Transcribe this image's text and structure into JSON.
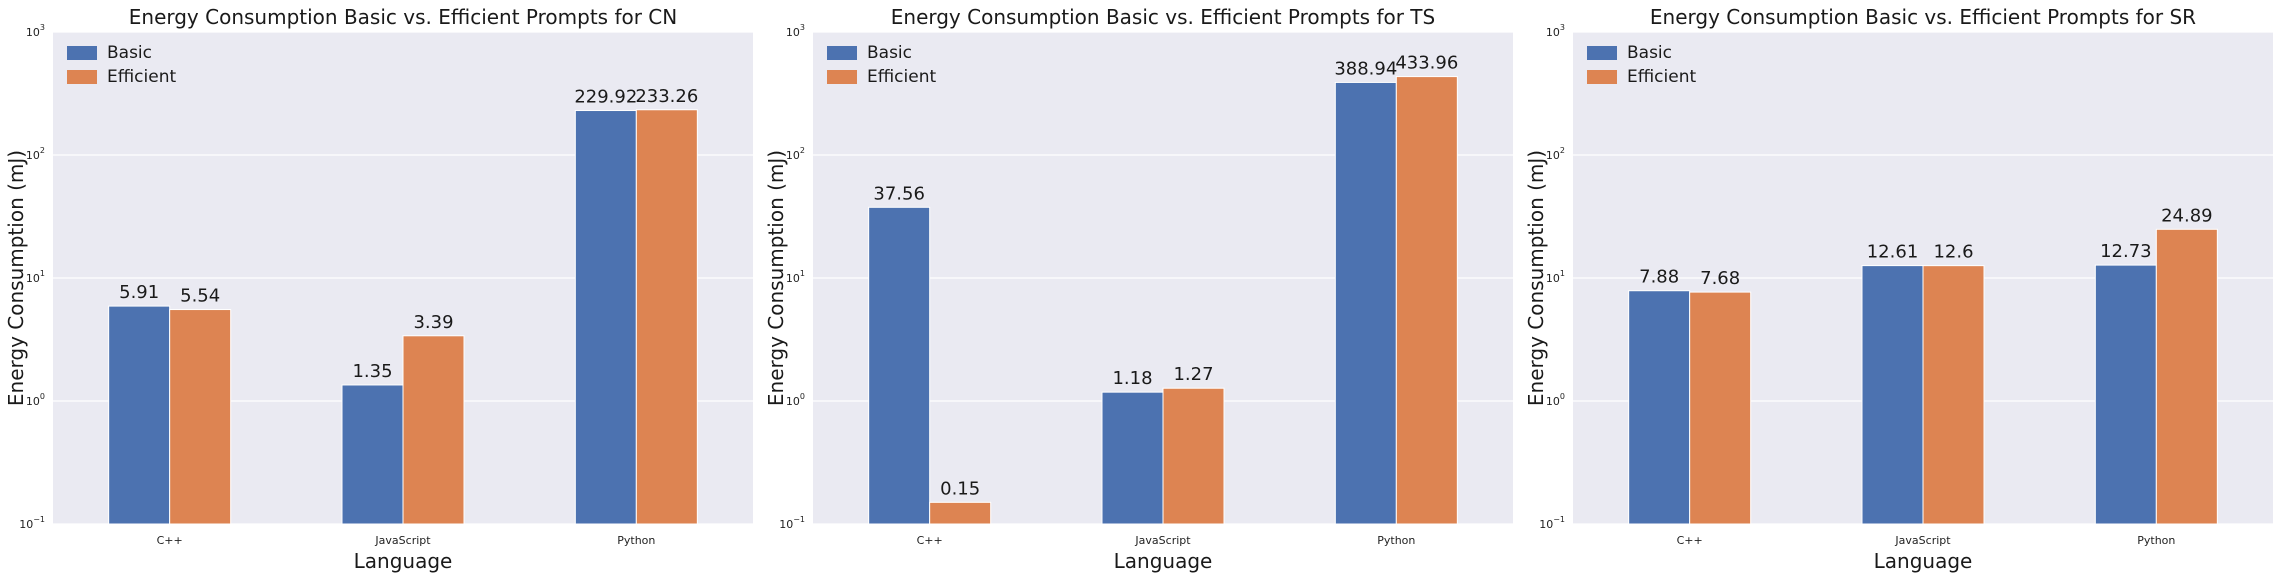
{
  "colors": {
    "basic": "#4c72b0",
    "efficient": "#dd8452",
    "panel_bg": "#eaeaf2",
    "gridline": "#ffffff"
  },
  "chart_data": [
    {
      "type": "bar",
      "title": "Energy Consumption Basic vs. Efficient Prompts for CN",
      "xlabel": "Language",
      "ylabel": "Energy Consumption (mJ)",
      "y_scale": "log",
      "ylim": [
        0.1,
        1000
      ],
      "y_ticks": [
        {
          "value": 0.1,
          "mantissa": "10",
          "exponent": "−1"
        },
        {
          "value": 1,
          "mantissa": "10",
          "exponent": "0"
        },
        {
          "value": 10,
          "mantissa": "10",
          "exponent": "1"
        },
        {
          "value": 100,
          "mantissa": "10",
          "exponent": "2"
        },
        {
          "value": 1000,
          "mantissa": "10",
          "exponent": "3"
        }
      ],
      "grid": true,
      "legend": "top-left",
      "categories": [
        "C++",
        "JavaScript",
        "Python"
      ],
      "series": [
        {
          "name": "Basic",
          "values": [
            5.91,
            1.35,
            229.92
          ],
          "labels": [
            "5.91",
            "1.35",
            "229.92"
          ]
        },
        {
          "name": "Efficient",
          "values": [
            5.54,
            3.39,
            233.26
          ],
          "labels": [
            "5.54",
            "3.39",
            "233.26"
          ]
        }
      ]
    },
    {
      "type": "bar",
      "title": "Energy Consumption Basic vs. Efficient Prompts for TS",
      "xlabel": "Language",
      "ylabel": "Energy Consumption (mJ)",
      "y_scale": "log",
      "ylim": [
        0.1,
        1000
      ],
      "y_ticks": [
        {
          "value": 0.1,
          "mantissa": "10",
          "exponent": "−1"
        },
        {
          "value": 1,
          "mantissa": "10",
          "exponent": "0"
        },
        {
          "value": 10,
          "mantissa": "10",
          "exponent": "1"
        },
        {
          "value": 100,
          "mantissa": "10",
          "exponent": "2"
        },
        {
          "value": 1000,
          "mantissa": "10",
          "exponent": "3"
        }
      ],
      "grid": true,
      "legend": "top-left",
      "categories": [
        "C++",
        "JavaScript",
        "Python"
      ],
      "series": [
        {
          "name": "Basic",
          "values": [
            37.56,
            1.18,
            388.94
          ],
          "labels": [
            "37.56",
            "1.18",
            "388.94"
          ]
        },
        {
          "name": "Efficient",
          "values": [
            0.15,
            1.27,
            433.96
          ],
          "labels": [
            "0.15",
            "1.27",
            "433.96"
          ]
        }
      ]
    },
    {
      "type": "bar",
      "title": "Energy Consumption Basic vs. Efficient Prompts for SR",
      "xlabel": "Language",
      "ylabel": "Energy Consumption (mJ)",
      "y_scale": "log",
      "ylim": [
        0.1,
        1000
      ],
      "y_ticks": [
        {
          "value": 0.1,
          "mantissa": "10",
          "exponent": "−1"
        },
        {
          "value": 1,
          "mantissa": "10",
          "exponent": "0"
        },
        {
          "value": 10,
          "mantissa": "10",
          "exponent": "1"
        },
        {
          "value": 100,
          "mantissa": "10",
          "exponent": "2"
        },
        {
          "value": 1000,
          "mantissa": "10",
          "exponent": "3"
        }
      ],
      "grid": true,
      "legend": "top-left",
      "categories": [
        "C++",
        "JavaScript",
        "Python"
      ],
      "series": [
        {
          "name": "Basic",
          "values": [
            7.88,
            12.61,
            12.73
          ],
          "labels": [
            "7.88",
            "12.61",
            "12.73"
          ]
        },
        {
          "name": "Efficient",
          "values": [
            7.68,
            12.6,
            24.89
          ],
          "labels": [
            "7.68",
            "12.6",
            "24.89"
          ]
        }
      ]
    }
  ]
}
